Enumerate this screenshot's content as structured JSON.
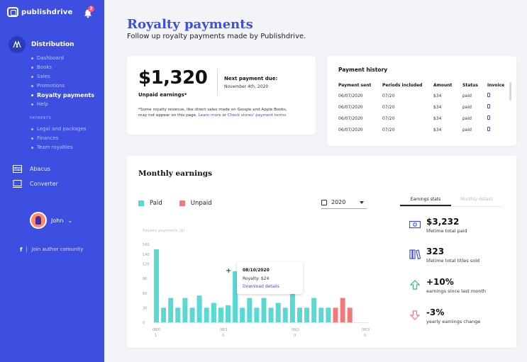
{
  "app": {
    "name": "publishdrive",
    "notification_count": "2"
  },
  "sidebar": {
    "main_item": "Distribution",
    "sub_items": [
      {
        "label": "Dashboard",
        "active": false
      },
      {
        "label": "Books",
        "active": false
      },
      {
        "label": "Sales",
        "active": false
      },
      {
        "label": "Promotions",
        "active": false
      },
      {
        "label": "Royalty payments",
        "active": true
      },
      {
        "label": "Help",
        "active": false
      }
    ],
    "payments_section_label": "PAYMENTS",
    "payments_items": [
      "Legal and packages",
      "Finances",
      "Team royalties"
    ],
    "tools": [
      "Abacus",
      "Converter"
    ],
    "user_name": "John",
    "community_link": "Join author comunity",
    "facebook_glyph": "f"
  },
  "header": {
    "title": "Royalty payments",
    "subtitle": "Follow up royalty payments made by Publishdrive."
  },
  "royalty_card": {
    "amount": "$1,320",
    "amount_label": "Unpaid earnings*",
    "next_payment_label": "Next payment due:",
    "next_payment_date": "November 4th, 2020",
    "note_text": "*Some royalty revenue, like direct sales made on Google and Apple Books, may not appear on this page.",
    "note_link1": "Learn more",
    "note_or": "or",
    "note_link2": "Check stores' payment terms"
  },
  "payment_history": {
    "title": "Payment history",
    "columns": [
      "Payment sent",
      "Periods included",
      "Amount",
      "Status",
      "Invoice"
    ],
    "rows": [
      {
        "sent": "06/07/2020",
        "period": "07/20",
        "amount": "$34",
        "status": "paid"
      },
      {
        "sent": "06/07/2020",
        "period": "07/20",
        "amount": "$34",
        "status": "paid"
      },
      {
        "sent": "06/07/2020",
        "period": "07/20",
        "amount": "$34",
        "status": "paid"
      },
      {
        "sent": "06/07/2020",
        "period": "07/20",
        "amount": "$34",
        "status": "paid"
      }
    ]
  },
  "monthly": {
    "title": "Monthly earnings",
    "legend_paid": "Paid",
    "legend_unpaid": "Unpaid",
    "year": "2020",
    "tooltip": {
      "date": "08/10/2020",
      "royalty": "Royalty: $24",
      "link": "Download details"
    }
  },
  "stats": {
    "tab_active": "Earnings stats",
    "tab_inactive": "Monthly details",
    "items": [
      {
        "value": "$3,232",
        "label": "lifetime total paid",
        "icon": "money-icon"
      },
      {
        "value": "323",
        "label": "lifetime total titles sold",
        "icon": "books-icon"
      },
      {
        "value": "+10%",
        "label": "earnings since last month",
        "icon": "arrow-up-icon"
      },
      {
        "value": "-3%",
        "label": "yearly earnings change",
        "icon": "arrow-down-icon"
      }
    ]
  },
  "colors": {
    "accent": "#3d4fe0",
    "paid": "#5ad8d2",
    "unpaid": "#f07a7a"
  },
  "chart_data": {
    "type": "bar",
    "ylabel": "Royalty payments ($)",
    "ylim": [
      0,
      160
    ],
    "yticks": [
      0,
      30,
      60,
      90,
      120,
      140,
      160
    ],
    "xticks": [
      {
        "line1": "08/0",
        "line2": "1"
      },
      {
        "line1": "08/1",
        "line2": "0"
      },
      {
        "line1": "08/2",
        "line2": "0"
      },
      {
        "line1": "08/3",
        "line2": "0"
      }
    ],
    "series": [
      {
        "name": "Paid",
        "values": [
          150,
          30,
          50,
          30,
          50,
          30,
          55,
          30,
          40,
          30,
          35,
          105,
          30,
          50,
          30,
          50,
          30,
          40,
          30,
          60,
          30,
          30,
          50,
          30,
          30,
          0,
          0,
          0,
          0
        ]
      },
      {
        "name": "Unpaid",
        "values": [
          0,
          0,
          0,
          0,
          0,
          0,
          0,
          0,
          0,
          0,
          0,
          0,
          0,
          0,
          0,
          0,
          0,
          0,
          0,
          0,
          0,
          0,
          0,
          0,
          0,
          30,
          50,
          30,
          0
        ]
      }
    ]
  }
}
